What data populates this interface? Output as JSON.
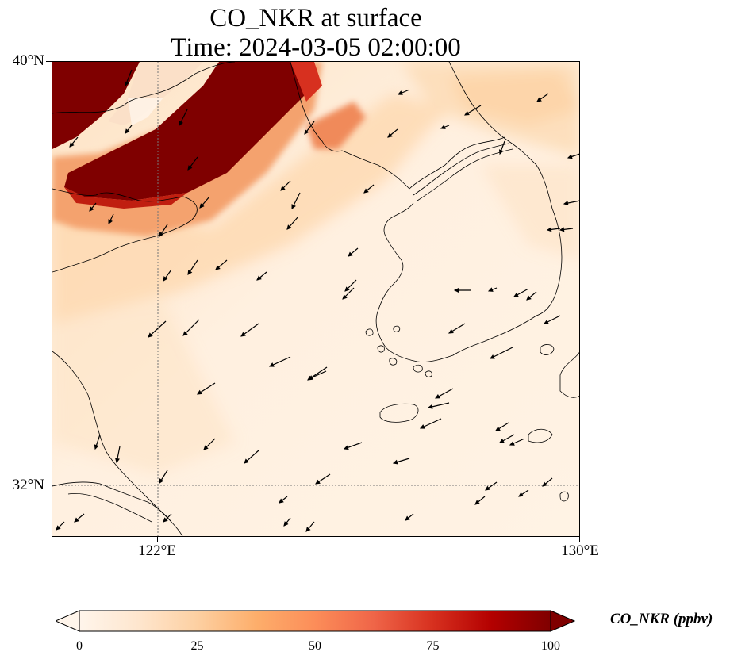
{
  "title": {
    "line1": "CO_NKR at surface",
    "line2": "Time: 2024-03-05 02:00:00"
  },
  "map": {
    "lat_labels": [
      "40°N",
      "32°N"
    ],
    "lon_labels": [
      "122°E",
      "130°E"
    ],
    "extent": {
      "lon_min": 120,
      "lon_max": 130,
      "lat_min": 31,
      "lat_max": 40
    },
    "gridlines": {
      "lon": [
        122
      ],
      "lat": [
        32
      ],
      "style": "dotted"
    },
    "wind_vectors": true,
    "field": "CO_NKR",
    "high_concentration_band": "northwest corner (Bohai / Liaodong region)"
  },
  "colorbar": {
    "label": "CO_NKR (ppbv)",
    "ticks": [
      "0",
      "25",
      "50",
      "75",
      "100"
    ],
    "min": 0,
    "max": 100,
    "extend": "both",
    "colormap": [
      "#fff5eb",
      "#fee6ce",
      "#fdd0a2",
      "#fdae6b",
      "#fd8d3c",
      "#f16913",
      "#d94801",
      "#a63603",
      "#7f2704"
    ]
  }
}
